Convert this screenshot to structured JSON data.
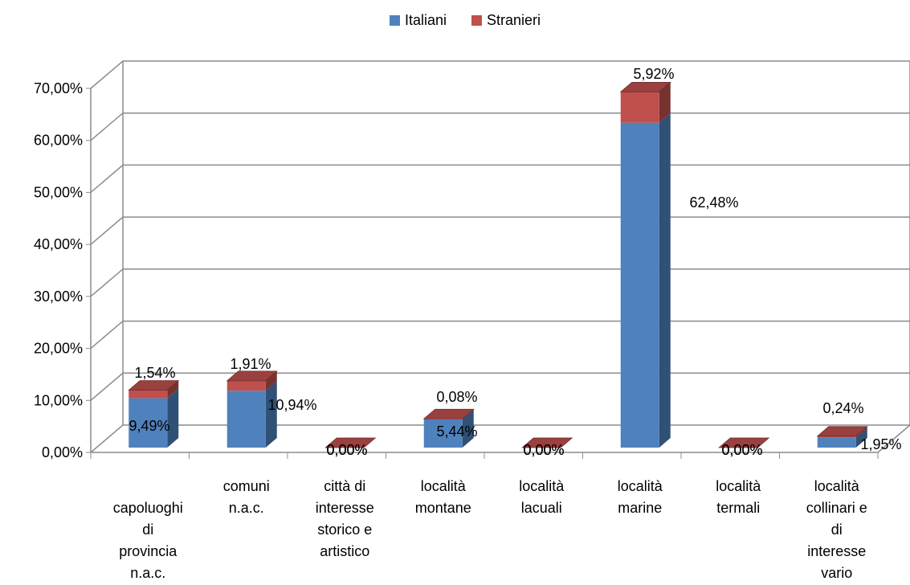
{
  "chart_data": {
    "type": "bar",
    "stacked": true,
    "style": "3d-stacked-column",
    "categories": [
      [
        "capoluoghi",
        "di",
        "provincia",
        "n.a.c."
      ],
      [
        "comuni",
        "n.a.c."
      ],
      [
        "città di",
        "interesse",
        "storico e",
        "artistico"
      ],
      [
        "località",
        "montane"
      ],
      [
        "località",
        "lacuali"
      ],
      [
        "località",
        "marine"
      ],
      [
        "località",
        "termali"
      ],
      [
        "località",
        "collinari e",
        "di",
        "interesse",
        "vario"
      ]
    ],
    "series": [
      {
        "name": "Italiani",
        "color": "#4F81BD",
        "values": [
          9.49,
          10.94,
          0.0,
          5.44,
          0.0,
          62.48,
          0.0,
          1.95
        ],
        "labels": [
          "9,49%",
          "10,94%",
          "0,00%",
          "5,44%",
          "0,00%",
          "62,48%",
          "0,00%",
          "1,95%"
        ]
      },
      {
        "name": "Stranieri",
        "color": "#C0504D",
        "values": [
          1.54,
          1.91,
          0.0,
          0.08,
          0.0,
          5.92,
          0.0,
          0.24
        ],
        "labels": [
          "1,54%",
          "1,91%",
          "0,00%",
          "0,08%",
          "0,00%",
          "5,92%",
          "0,00%",
          "0,24%"
        ]
      }
    ],
    "yticks": [
      "0,00%",
      "10,00%",
      "20,00%",
      "30,00%",
      "40,00%",
      "50,00%",
      "60,00%",
      "70,00%"
    ],
    "ylim": [
      0,
      70
    ],
    "grid": true,
    "legend": "top-center"
  }
}
